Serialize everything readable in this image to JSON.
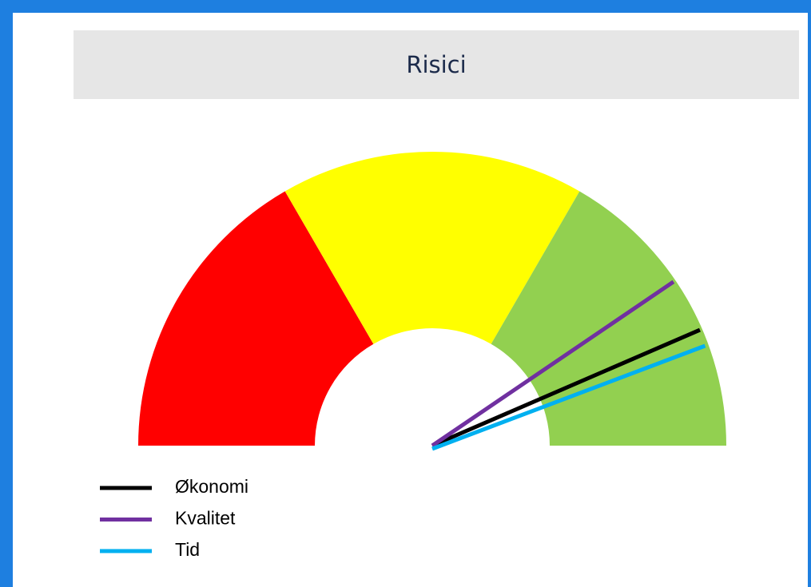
{
  "chart_data": {
    "type": "gauge",
    "title": "Risici",
    "min": 0,
    "max": 100,
    "bands": [
      {
        "from": 0,
        "to": 33.3,
        "color": "#ff0000"
      },
      {
        "from": 33.3,
        "to": 66.7,
        "color": "#ffff00"
      },
      {
        "from": 66.7,
        "to": 100,
        "color": "#92d050"
      }
    ],
    "series": [
      {
        "name": "Økonomi",
        "color": "#000000",
        "values": [
          87
        ]
      },
      {
        "name": "Kvalitet",
        "color": "#7030a0",
        "values": [
          81
        ]
      },
      {
        "name": "Tid",
        "color": "#00b0f0",
        "values": [
          88.5
        ]
      }
    ]
  }
}
